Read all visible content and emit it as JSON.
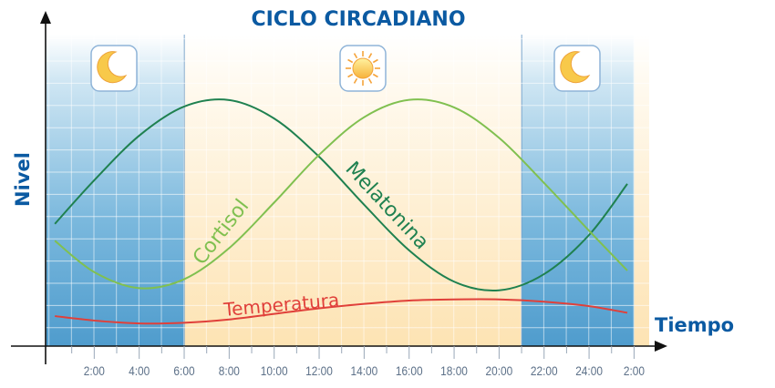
{
  "chart_data": {
    "type": "line",
    "title": "CICLO CIRCADIANO",
    "xlabel": "Tiempo",
    "ylabel": "Nivel",
    "x_unit": "hour of day",
    "xlim": [
      0,
      26
    ],
    "ylim": [
      0,
      14
    ],
    "grid": true,
    "x_ticks": [
      {
        "h": 2,
        "label": "2:00"
      },
      {
        "h": 4,
        "label": "4:00"
      },
      {
        "h": 6,
        "label": "6:00"
      },
      {
        "h": 8,
        "label": "8:00"
      },
      {
        "h": 10,
        "label": "10:00"
      },
      {
        "h": 12,
        "label": "12:00"
      },
      {
        "h": 14,
        "label": "14:00"
      },
      {
        "h": 16,
        "label": "16:00"
      },
      {
        "h": 18,
        "label": "18:00"
      },
      {
        "h": 20,
        "label": "20:00"
      },
      {
        "h": 22,
        "label": "22:00"
      },
      {
        "h": 24,
        "label": "24:00"
      },
      {
        "h": 26,
        "label": "2:00"
      }
    ],
    "periods": [
      {
        "name": "night",
        "from": 0,
        "to": 6,
        "icon": "moon-icon"
      },
      {
        "name": "day",
        "from": 6,
        "to": 21,
        "icon": "sun-icon"
      },
      {
        "name": "night",
        "from": 21,
        "to": 26,
        "icon": "moon-icon"
      }
    ],
    "x": [
      0.25,
      2,
      4,
      6,
      8,
      10,
      12,
      14,
      16,
      18,
      20,
      22,
      24,
      25.7
    ],
    "series": [
      {
        "name": "Melatonina",
        "color": "#1f8150",
        "values": [
          5.5,
          7.46,
          9.47,
          10.78,
          11.07,
          10.24,
          8.52,
          6.36,
          4.31,
          2.9,
          2.51,
          3.24,
          5.0,
          7.3
        ]
      },
      {
        "name": "Cortisol",
        "color": "#80c050",
        "values": [
          4.74,
          3.33,
          2.61,
          3.01,
          4.41,
          6.46,
          8.61,
          10.3,
          11.08,
          10.74,
          9.37,
          7.34,
          5.19,
          3.4
        ]
      },
      {
        "name": "Temperatura",
        "color": "#e0403a",
        "values": [
          1.35,
          1.15,
          1.02,
          1.05,
          1.2,
          1.45,
          1.7,
          1.9,
          2.05,
          2.1,
          2.1,
          2.0,
          1.8,
          1.5
        ]
      }
    ]
  },
  "colors": {
    "title": "#0b5aa2",
    "night": "#5aa6d3",
    "day": "#fde9bf",
    "axis": "#111111",
    "tick_label": "#5c7088"
  }
}
